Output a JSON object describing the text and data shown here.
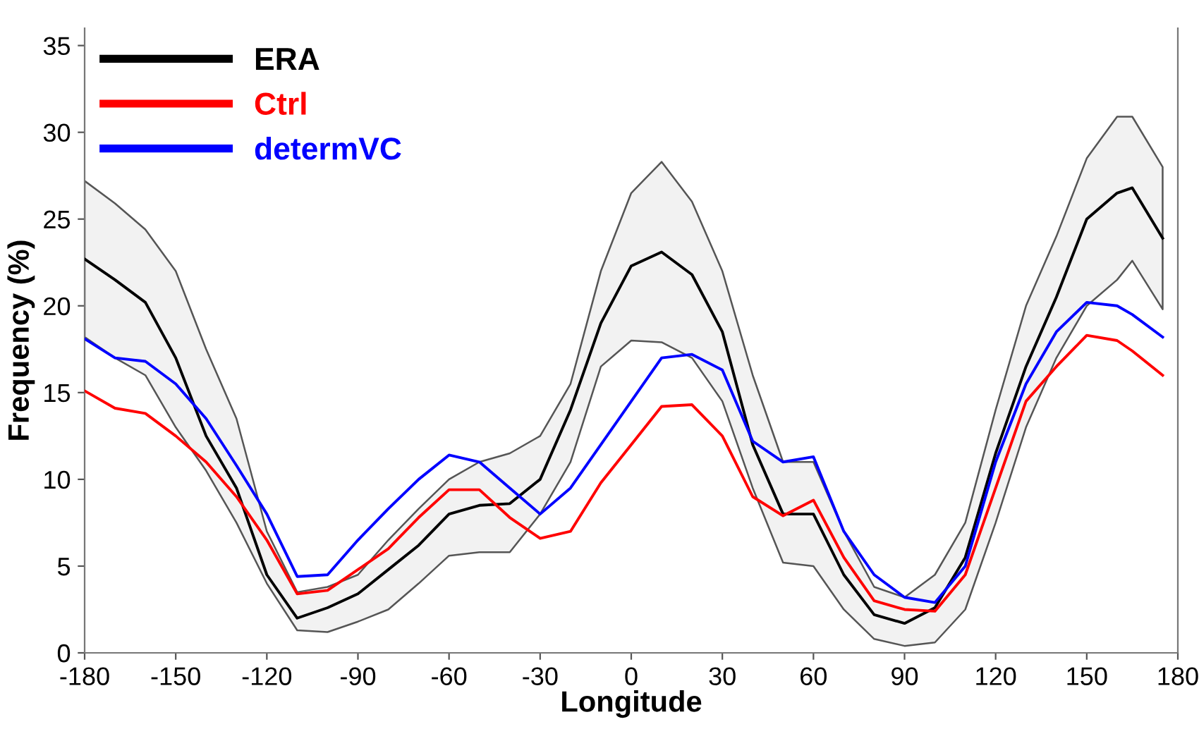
{
  "chart_data": {
    "type": "line",
    "xlabel": "Longitude",
    "ylabel": "Frequency (%)",
    "x": [
      -180,
      -170,
      -160,
      -150,
      -140,
      -130,
      -120,
      -110,
      -100,
      -90,
      -80,
      -70,
      -60,
      -50,
      -40,
      -30,
      -20,
      -10,
      0,
      10,
      20,
      30,
      40,
      50,
      60,
      70,
      80,
      90,
      100,
      110,
      120,
      130,
      140,
      150,
      160,
      165,
      175
    ],
    "series": [
      {
        "name": "ERA",
        "color": "#000000",
        "values": [
          22.7,
          21.5,
          20.2,
          17.0,
          12.5,
          9.5,
          4.5,
          2.0,
          2.6,
          3.4,
          4.8,
          6.2,
          8.0,
          8.5,
          8.6,
          10.0,
          14.0,
          19.0,
          22.3,
          23.1,
          21.8,
          18.5,
          12.0,
          8.0,
          8.0,
          4.5,
          2.2,
          1.7,
          2.6,
          5.5,
          11.5,
          16.5,
          20.5,
          25.0,
          26.5,
          26.8,
          23.9
        ],
        "upper": [
          27.2,
          25.9,
          24.4,
          22.0,
          17.5,
          13.5,
          7.0,
          3.5,
          3.8,
          4.5,
          6.5,
          8.3,
          10.0,
          11.0,
          11.5,
          12.5,
          15.5,
          22.0,
          26.5,
          28.3,
          26.0,
          22.0,
          16.0,
          11.0,
          11.0,
          7.0,
          3.8,
          3.2,
          4.5,
          7.5,
          14.0,
          20.0,
          24.0,
          28.5,
          30.9,
          30.9,
          28.0
        ],
        "lower": [
          18.2,
          17.0,
          16.0,
          13.0,
          10.5,
          7.5,
          4.0,
          1.3,
          1.2,
          1.8,
          2.5,
          4.0,
          5.6,
          5.8,
          5.8,
          8.0,
          11.0,
          16.5,
          18.0,
          17.9,
          17.0,
          14.5,
          9.5,
          5.2,
          5.0,
          2.5,
          0.8,
          0.4,
          0.6,
          2.5,
          7.5,
          13.0,
          17.0,
          20.0,
          21.5,
          22.6,
          19.8
        ]
      },
      {
        "name": "Ctrl",
        "color": "#ff0000",
        "values": [
          15.1,
          14.1,
          13.8,
          12.5,
          11.0,
          9.0,
          6.5,
          3.4,
          3.6,
          4.8,
          6.0,
          7.8,
          9.4,
          9.4,
          7.8,
          6.6,
          7.0,
          9.8,
          12.0,
          14.2,
          14.3,
          12.5,
          9.0,
          7.9,
          8.8,
          5.5,
          3.0,
          2.5,
          2.4,
          4.5,
          9.5,
          14.5,
          16.5,
          18.3,
          18.0,
          17.4,
          16.0
        ]
      },
      {
        "name": "determVC",
        "color": "#0000ff",
        "values": [
          18.1,
          17.0,
          16.8,
          15.5,
          13.5,
          10.8,
          8.0,
          4.4,
          4.5,
          6.5,
          8.3,
          10.0,
          11.4,
          11.0,
          9.5,
          8.0,
          9.5,
          12.0,
          14.5,
          17.0,
          17.2,
          16.3,
          12.2,
          11.0,
          11.3,
          7.0,
          4.5,
          3.2,
          2.9,
          5.0,
          11.0,
          15.5,
          18.5,
          20.2,
          20.0,
          19.5,
          18.2
        ]
      }
    ],
    "xlim": [
      -180,
      180
    ],
    "xticks": [
      -180,
      -150,
      -120,
      -90,
      -60,
      -30,
      0,
      30,
      60,
      90,
      120,
      150,
      180
    ],
    "ylim": [
      0,
      36
    ],
    "yticks": [
      0,
      5,
      10,
      15,
      20,
      25,
      30,
      35
    ],
    "grid": false,
    "legend": "top left",
    "line_style": "solid",
    "marker": "none"
  }
}
